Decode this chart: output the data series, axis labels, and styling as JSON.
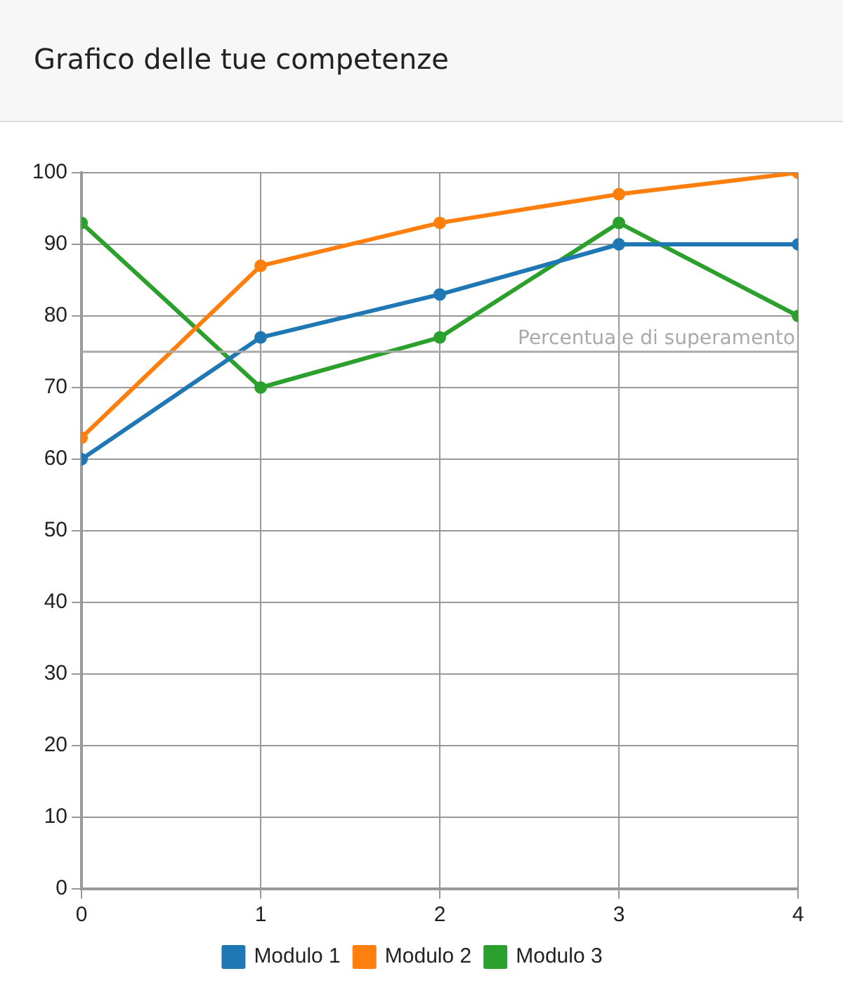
{
  "chart_data": {
    "type": "line",
    "title": "Grafico delle tue competenze",
    "x": [
      0,
      1,
      2,
      3,
      4
    ],
    "xlim": [
      0,
      4
    ],
    "xticks": [
      0,
      1,
      2,
      3,
      4
    ],
    "ylim": [
      0,
      100
    ],
    "yticks": [
      0,
      10,
      20,
      30,
      40,
      50,
      60,
      70,
      80,
      90,
      100
    ],
    "series": [
      {
        "name": "Modulo 1",
        "color": "#1f77b4",
        "values": [
          60,
          77,
          83,
          90,
          90
        ]
      },
      {
        "name": "Modulo 2",
        "color": "#ff7f0e",
        "values": [
          63,
          87,
          93,
          97,
          100
        ]
      },
      {
        "name": "Modulo 3",
        "color": "#2ca02c",
        "values": [
          93,
          70,
          77,
          93,
          80
        ]
      }
    ],
    "ref_lines": [
      {
        "axis": "y",
        "value": 75,
        "label": "Percentuale di superamento",
        "color": "#aaaaaa"
      }
    ],
    "grid": true,
    "legend": "bottom",
    "marker": "circle",
    "line_style": "solid"
  }
}
